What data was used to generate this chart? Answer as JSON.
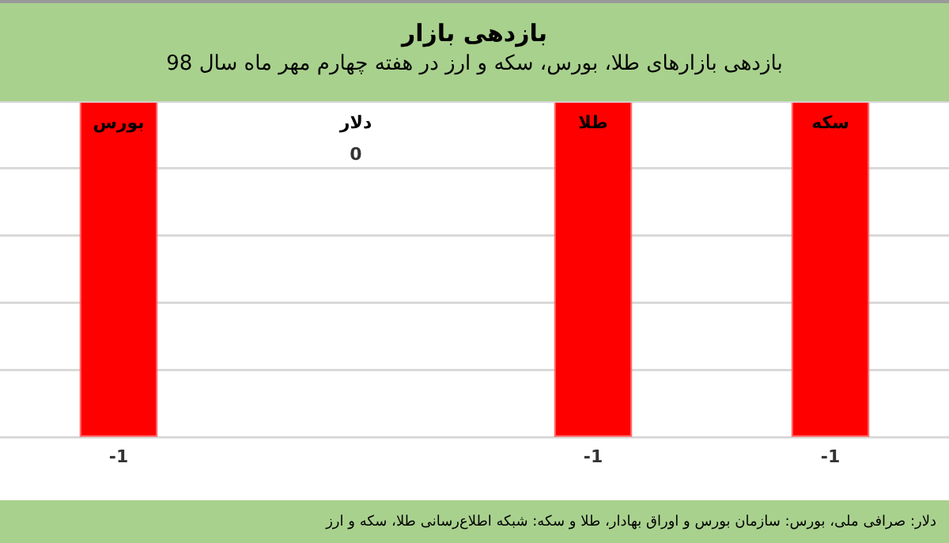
{
  "chart_data": {
    "type": "bar",
    "title": "بازدهی بازار",
    "subtitle": "بازدهی بازارهای طلا، بورس، سکه و ارز در هفته چهارم مهر ماه سال 98",
    "categories": [
      "بورس",
      "دلار",
      "طلا",
      "سکه"
    ],
    "values": [
      -1,
      0,
      -1,
      -1
    ],
    "color": "#ff0000",
    "data_labels": true,
    "ylim": [
      -1,
      0
    ],
    "yticks": [
      {
        "value": 0,
        "label": null
      },
      {
        "value": -0.2,
        "label": null
      },
      {
        "value": -0.4,
        "label": null
      },
      {
        "value": -0.6,
        "label": null
      },
      {
        "value": -0.8,
        "label": null
      },
      {
        "value": -1,
        "label": null
      }
    ],
    "grid": "y",
    "tick_labels": "x",
    "annotations": [
      "دلار: صرافی ملی، بورس: سازمان بورس و اوراق بهادار، طلا و سکه: شبکه اطلاع‌رسانی طلا، سکه و ارز"
    ]
  }
}
